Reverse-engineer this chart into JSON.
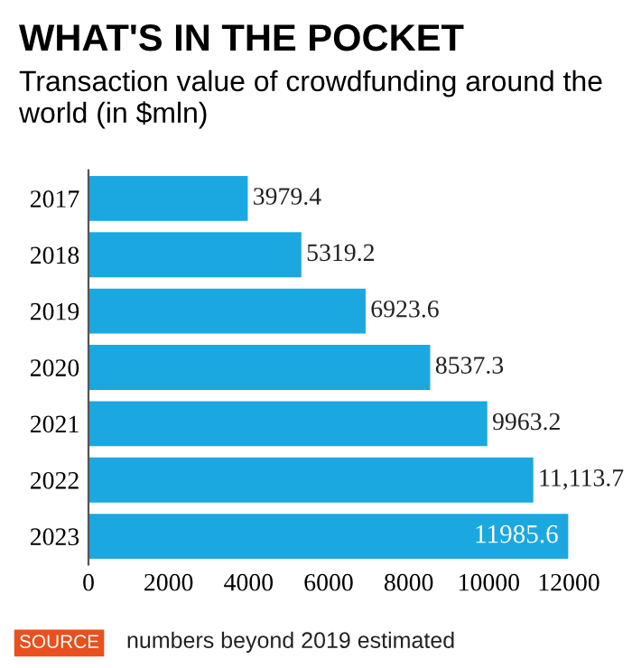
{
  "chart_data": {
    "type": "bar",
    "orientation": "horizontal",
    "title": "WHAT'S IN THE POCKET",
    "subtitle": "Transaction value of crowdfunding around the world (in $mln)",
    "categories": [
      "2017",
      "2018",
      "2019",
      "2020",
      "2021",
      "2022",
      "2023"
    ],
    "values": [
      3979.4,
      5319.2,
      6923.6,
      8537.3,
      9963.2,
      11113.7,
      11985.6
    ],
    "value_labels": [
      "3979.4",
      "5319.2",
      "6923.6",
      "8537.3",
      "9963.2",
      "11,113.7",
      "11985.6"
    ],
    "color": "#1ba8e0",
    "xlim": [
      0,
      12000
    ],
    "xticks": [
      0,
      2000,
      4000,
      6000,
      8000,
      10000,
      12000
    ],
    "grid": false,
    "legend": false,
    "annotations": [
      "SOURCE",
      "numbers beyond 2019 estimated"
    ]
  }
}
